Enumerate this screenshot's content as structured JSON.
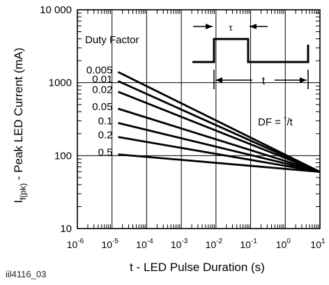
{
  "chart_data": {
    "type": "line",
    "figure_id": "iil4116_03",
    "xlabel": "t - LED Pulse Duration (s)",
    "ylabel_main": "I",
    "ylabel_sub": "f(pk)",
    "ylabel_rest": " - Peak LED Current (mA)",
    "x_scale": "log",
    "y_scale": "log",
    "xlim": [
      1e-06,
      10
    ],
    "ylim": [
      10,
      10000
    ],
    "grid": true,
    "x_ticks": [
      {
        "base": "10",
        "exp": "-6",
        "value": 1e-06
      },
      {
        "base": "10",
        "exp": "-5",
        "value": 1e-05
      },
      {
        "base": "10",
        "exp": "-4",
        "value": 0.0001
      },
      {
        "base": "10",
        "exp": "-3",
        "value": 0.001
      },
      {
        "base": "10",
        "exp": "-2",
        "value": 0.01
      },
      {
        "base": "10",
        "exp": "-1",
        "value": 0.1
      },
      {
        "base": "10",
        "exp": "0",
        "value": 1
      },
      {
        "base": "10",
        "exp": "1",
        "value": 10
      }
    ],
    "y_ticks": [
      {
        "label": "10",
        "value": 10
      },
      {
        "label": "100",
        "value": 100
      },
      {
        "label": "1000",
        "value": 1000
      },
      {
        "label": "10 000",
        "value": 10000
      }
    ],
    "legend_title": "Duty Factor",
    "series": [
      {
        "name": "0.005",
        "x": [
          1.5e-05,
          10
        ],
        "y": [
          1400,
          60
        ]
      },
      {
        "name": "0.01",
        "x": [
          1.5e-05,
          10
        ],
        "y": [
          1050,
          60
        ]
      },
      {
        "name": "0.02",
        "x": [
          1.5e-05,
          10
        ],
        "y": [
          750,
          60
        ]
      },
      {
        "name": "0.05",
        "x": [
          1.5e-05,
          10
        ],
        "y": [
          440,
          60
        ]
      },
      {
        "name": "0.1",
        "x": [
          1.5e-05,
          10
        ],
        "y": [
          280,
          60
        ]
      },
      {
        "name": "0.2",
        "x": [
          1.5e-05,
          10
        ],
        "y": [
          180,
          60
        ]
      },
      {
        "name": "0.5",
        "x": [
          1.5e-05,
          10
        ],
        "y": [
          104,
          60
        ]
      }
    ],
    "annotations": {
      "tau_label": "τ",
      "t_label": "t",
      "df_prefix": "DF = ",
      "df_sup": "τ",
      "df_suffix": "/t"
    }
  }
}
